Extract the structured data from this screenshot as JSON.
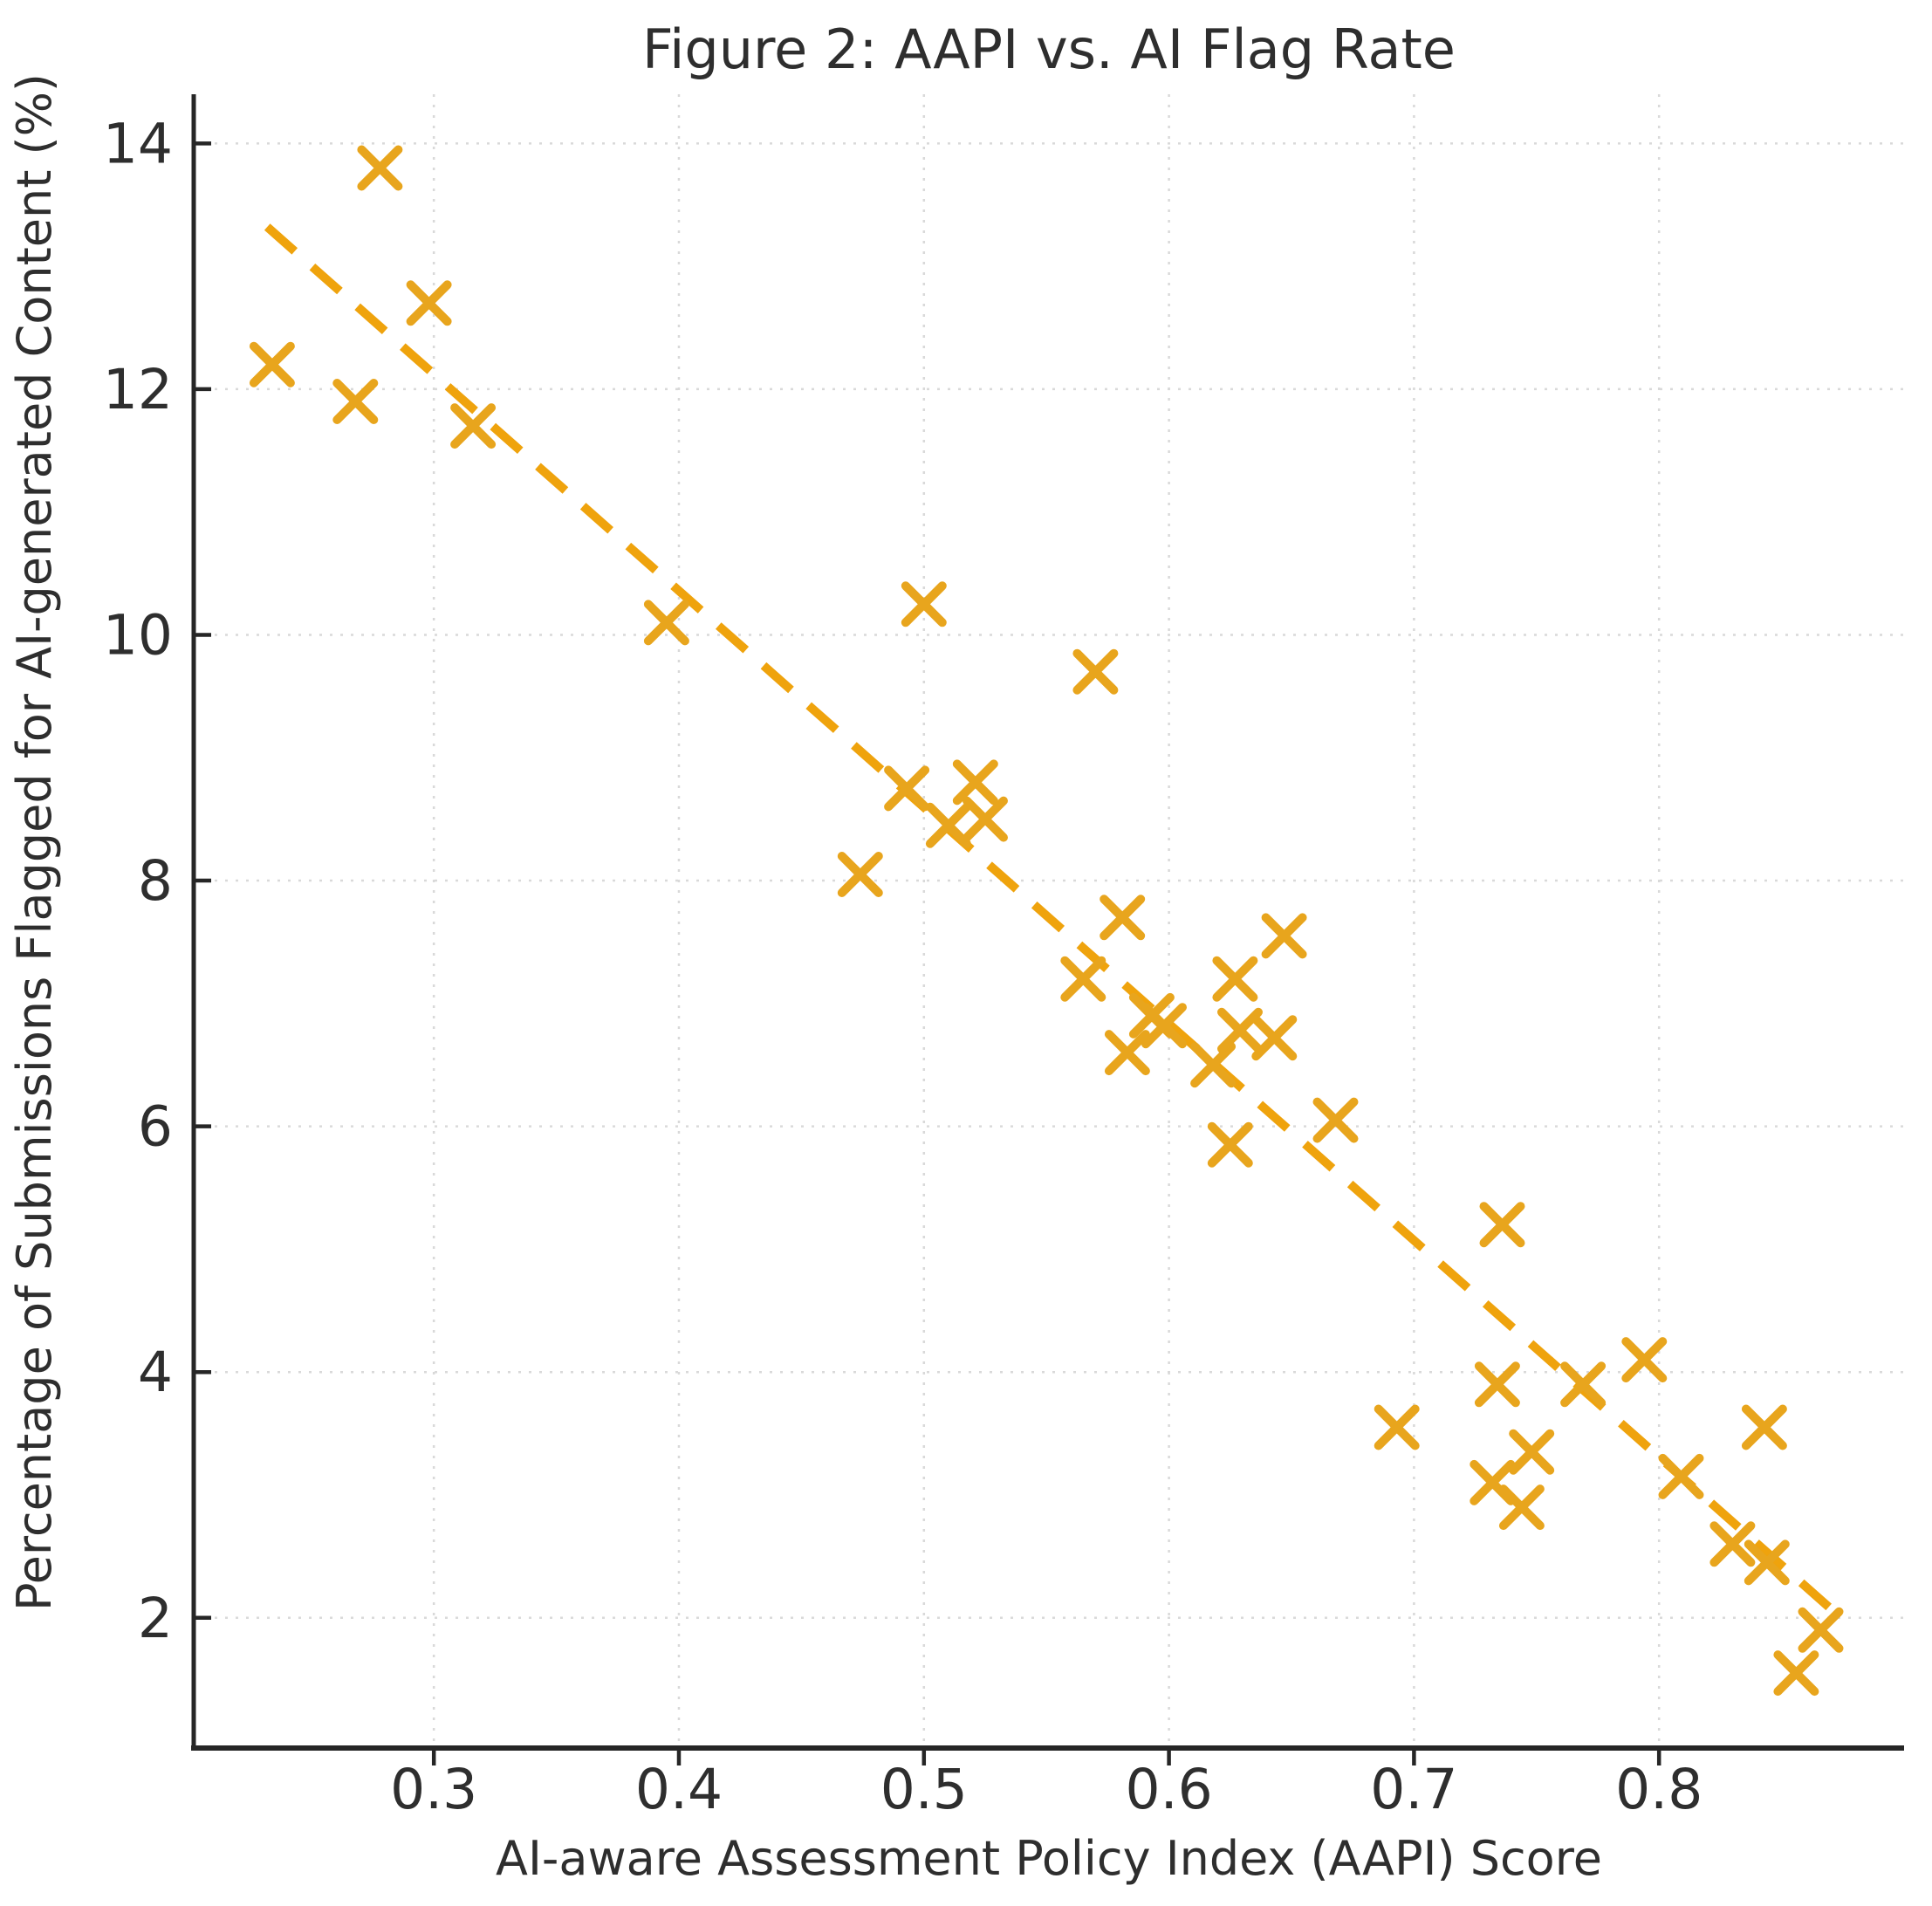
{
  "figure": {
    "title": "Figure 2: AAPI vs. AI Flag Rate",
    "xlabel": "AI-aware Assessment Policy Index (AAPI) Score",
    "ylabel": "Percentage of Submissions Flagged for AI-generated Content (%)"
  },
  "colors": {
    "marker": "#E8A51D",
    "trend": "#EFA30D",
    "text": "#2e2e2e",
    "grid": "#d9d9d9",
    "spine": "#262626",
    "background": "#ffffff"
  },
  "chart_data": {
    "type": "scatter",
    "title": "Figure 2: AAPI vs. AI Flag Rate",
    "xlabel": "AI-aware Assessment Policy Index (AAPI) Score",
    "ylabel": "Percentage of Submissions Flagged for AI-generated Content (%)",
    "marker_style": "x",
    "grid": true,
    "legend_position": "none",
    "xlim": [
      0.202,
      0.9
    ],
    "ylim": [
      0.94,
      14.4
    ],
    "x_ticks": [
      0.3,
      0.4,
      0.5,
      0.6,
      0.7,
      0.8
    ],
    "x_tick_labels": [
      "0.3",
      "0.4",
      "0.5",
      "0.6",
      "0.7",
      "0.8"
    ],
    "y_ticks": [
      2,
      4,
      6,
      8,
      10,
      12,
      14
    ],
    "y_tick_labels": [
      "2",
      "4",
      "6",
      "8",
      "10",
      "12",
      "14"
    ],
    "points": [
      [
        0.234,
        12.2
      ],
      [
        0.268,
        11.9
      ],
      [
        0.278,
        13.8
      ],
      [
        0.298,
        12.7
      ],
      [
        0.316,
        11.7
      ],
      [
        0.395,
        10.1
      ],
      [
        0.474,
        8.05
      ],
      [
        0.493,
        8.75
      ],
      [
        0.5,
        10.25
      ],
      [
        0.51,
        8.45
      ],
      [
        0.521,
        8.8
      ],
      [
        0.525,
        8.5
      ],
      [
        0.565,
        7.2
      ],
      [
        0.57,
        9.7
      ],
      [
        0.581,
        7.7
      ],
      [
        0.583,
        6.6
      ],
      [
        0.593,
        6.9
      ],
      [
        0.598,
        6.82
      ],
      [
        0.618,
        6.5
      ],
      [
        0.625,
        5.85
      ],
      [
        0.627,
        7.2
      ],
      [
        0.629,
        6.78
      ],
      [
        0.643,
        6.72
      ],
      [
        0.647,
        7.55
      ],
      [
        0.668,
        6.05
      ],
      [
        0.693,
        3.55
      ],
      [
        0.732,
        3.1
      ],
      [
        0.734,
        3.9
      ],
      [
        0.736,
        5.2
      ],
      [
        0.744,
        2.9
      ],
      [
        0.748,
        3.35
      ],
      [
        0.769,
        3.9
      ],
      [
        0.794,
        4.1
      ],
      [
        0.809,
        3.15
      ],
      [
        0.83,
        2.6
      ],
      [
        0.843,
        3.55
      ],
      [
        0.844,
        2.45
      ],
      [
        0.856,
        1.55
      ],
      [
        0.866,
        1.9
      ]
    ],
    "trend_line": {
      "style": "dashed",
      "x_start": 0.232,
      "y_start": 13.32,
      "x_end": 0.872,
      "y_end": 2.04
    }
  }
}
